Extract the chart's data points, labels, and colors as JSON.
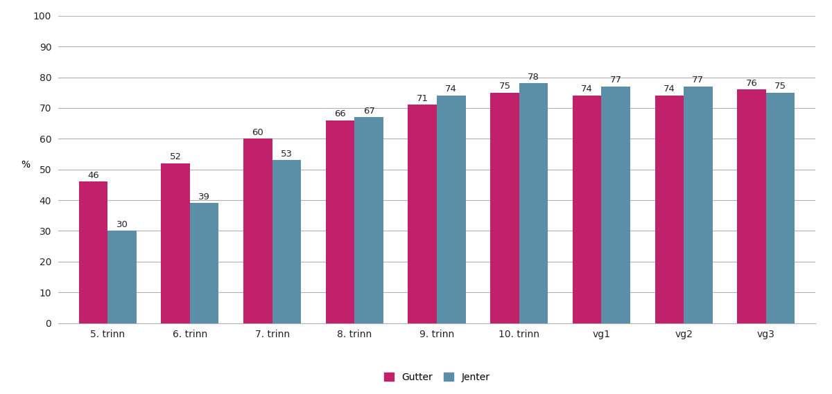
{
  "categories": [
    "5. trinn",
    "6. trinn",
    "7. trinn",
    "8. trinn",
    "9. trinn",
    "10. trinn",
    "vg1",
    "vg2",
    "vg3"
  ],
  "gutter_values": [
    46,
    52,
    60,
    66,
    71,
    75,
    74,
    74,
    76
  ],
  "jenter_values": [
    30,
    39,
    53,
    67,
    74,
    78,
    77,
    77,
    75
  ],
  "gutter_color": "#C0216A",
  "jenter_color": "#5B8FA8",
  "ylabel": "%",
  "ylim": [
    0,
    100
  ],
  "yticks": [
    0,
    10,
    20,
    30,
    40,
    50,
    60,
    70,
    80,
    90,
    100
  ],
  "legend_gutter": "Gutter",
  "legend_jenter": "Jenter",
  "bar_width": 0.35,
  "label_fontsize": 9.5,
  "axis_fontsize": 10,
  "legend_fontsize": 10,
  "background_color": "#ffffff",
  "grid_color": "#b0b0b0",
  "tick_label_color": "#222222"
}
